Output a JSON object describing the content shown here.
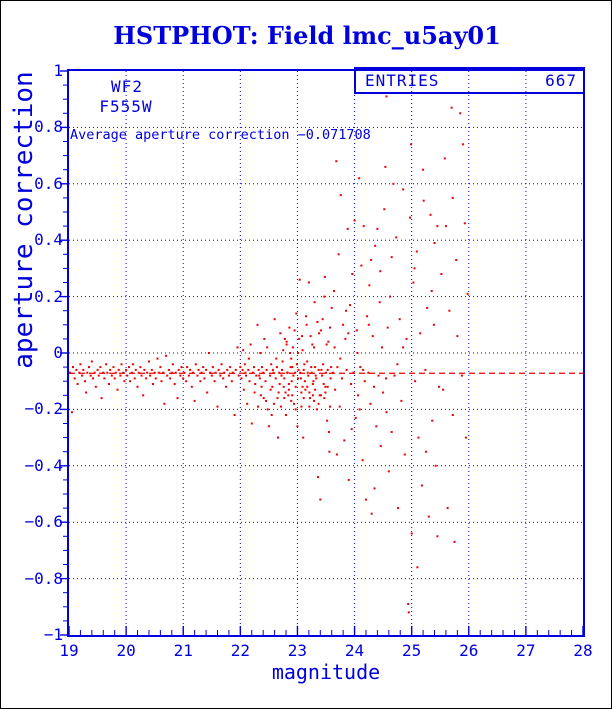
{
  "title": "HSTPHOT: Field lmc_u5ay01",
  "labels": {
    "detector": "WF2",
    "filter": "F555W",
    "average_line": "Average aperture correction −0.071708"
  },
  "stats_box": {
    "label": "ENTRIES",
    "value": "667"
  },
  "colors": {
    "blue": "#0000dd",
    "red": "#ee0000",
    "background": "#ffffff",
    "page_border": "#000000"
  },
  "chart_data": {
    "type": "scatter",
    "title": "HSTPHOT: Field lmc_u5ay01",
    "xlabel": "magnitude",
    "ylabel": "aperture correction",
    "xlim": [
      19,
      28
    ],
    "ylim": [
      -1,
      1
    ],
    "xticks": [
      19,
      20,
      21,
      22,
      23,
      24,
      25,
      26,
      27,
      28
    ],
    "yticks": [
      -1,
      -0.8,
      -0.6,
      -0.4,
      -0.2,
      0,
      0.2,
      0.4,
      0.6,
      0.8,
      1
    ],
    "x_minor_step": 0.2,
    "y_minor_step": 0.05,
    "grid": true,
    "legend": "none",
    "entries": 667,
    "average_aperture_correction": -0.071708,
    "reference_line_y": -0.071708,
    "points": [
      [
        19.02,
        -0.07
      ],
      [
        19.05,
        -0.21
      ],
      [
        19.07,
        -0.05
      ],
      [
        19.1,
        -0.09
      ],
      [
        19.13,
        -0.06
      ],
      [
        19.15,
        -0.11
      ],
      [
        19.18,
        -0.07
      ],
      [
        19.2,
        -0.04
      ],
      [
        19.23,
        -0.08
      ],
      [
        19.25,
        -0.06
      ],
      [
        19.28,
        -0.1
      ],
      [
        19.3,
        -0.14
      ],
      [
        19.32,
        -0.07
      ],
      [
        19.35,
        -0.05
      ],
      [
        19.38,
        -0.08
      ],
      [
        19.4,
        -0.03
      ],
      [
        19.42,
        -0.09
      ],
      [
        19.45,
        -0.07
      ],
      [
        19.47,
        -0.12
      ],
      [
        19.5,
        -0.06
      ],
      [
        19.52,
        -0.08
      ],
      [
        19.55,
        -0.05
      ],
      [
        19.57,
        -0.16
      ],
      [
        19.6,
        -0.07
      ],
      [
        19.62,
        -0.09
      ],
      [
        19.65,
        -0.04
      ],
      [
        19.67,
        -0.07
      ],
      [
        19.7,
        -0.11
      ],
      [
        19.72,
        -0.06
      ],
      [
        19.75,
        -0.08
      ],
      [
        19.78,
        -0.05
      ],
      [
        19.8,
        -0.09
      ],
      [
        19.82,
        -0.07
      ],
      [
        19.85,
        -0.13
      ],
      [
        19.87,
        -0.06
      ],
      [
        19.9,
        -0.08
      ],
      [
        19.92,
        -0.04
      ],
      [
        19.95,
        -0.07
      ],
      [
        19.97,
        -0.1
      ],
      [
        20.0,
        -0.06
      ],
      [
        20.02,
        -0.08
      ],
      [
        20.05,
        -0.05
      ],
      [
        20.07,
        -0.1
      ],
      [
        20.1,
        -0.07
      ],
      [
        20.12,
        -0.04
      ],
      [
        20.15,
        -0.09
      ],
      [
        20.17,
        -0.06
      ],
      [
        20.2,
        -0.12
      ],
      [
        20.22,
        -0.07
      ],
      [
        20.25,
        -0.05
      ],
      [
        20.27,
        -0.08
      ],
      [
        20.3,
        -0.15
      ],
      [
        20.32,
        -0.06
      ],
      [
        20.35,
        -0.09
      ],
      [
        20.37,
        -0.07
      ],
      [
        20.4,
        -0.03
      ],
      [
        20.42,
        -0.08
      ],
      [
        20.45,
        -0.06
      ],
      [
        20.47,
        -0.11
      ],
      [
        20.5,
        -0.07
      ],
      [
        20.52,
        -0.09
      ],
      [
        20.55,
        -0.02
      ],
      [
        20.57,
        -0.07
      ],
      [
        20.6,
        -0.05
      ],
      [
        20.62,
        -0.1
      ],
      [
        20.65,
        -0.07
      ],
      [
        20.67,
        -0.18
      ],
      [
        20.7,
        -0.01
      ],
      [
        20.72,
        -0.08
      ],
      [
        20.75,
        -0.06
      ],
      [
        20.77,
        -0.09
      ],
      [
        20.8,
        -0.07
      ],
      [
        20.82,
        -0.04
      ],
      [
        20.85,
        -0.11
      ],
      [
        20.87,
        -0.07
      ],
      [
        20.9,
        -0.16
      ],
      [
        20.92,
        -0.06
      ],
      [
        20.95,
        -0.08
      ],
      [
        20.97,
        -0.05
      ],
      [
        21.0,
        -0.09
      ],
      [
        21.02,
        -0.07
      ],
      [
        21.05,
        -0.1
      ],
      [
        21.07,
        -0.05
      ],
      [
        21.1,
        -0.08
      ],
      [
        21.12,
        -0.06
      ],
      [
        21.15,
        -0.12
      ],
      [
        21.17,
        -0.07
      ],
      [
        21.2,
        -0.17
      ],
      [
        21.22,
        -0.04
      ],
      [
        21.25,
        -0.08
      ],
      [
        21.27,
        -0.06
      ],
      [
        21.3,
        -0.1
      ],
      [
        21.32,
        -0.07
      ],
      [
        21.35,
        -0.05
      ],
      [
        21.37,
        -0.09
      ],
      [
        21.4,
        -0.06
      ],
      [
        21.42,
        -0.14
      ],
      [
        21.45,
        0.0
      ],
      [
        21.47,
        -0.07
      ],
      [
        21.5,
        -0.08
      ],
      [
        21.52,
        -0.05
      ],
      [
        21.55,
        -0.1
      ],
      [
        21.57,
        -0.07
      ],
      [
        21.6,
        -0.19
      ],
      [
        21.62,
        -0.06
      ],
      [
        21.65,
        -0.08
      ],
      [
        21.67,
        -0.04
      ],
      [
        21.7,
        -0.09
      ],
      [
        21.72,
        -0.07
      ],
      [
        21.75,
        -0.12
      ],
      [
        21.77,
        -0.06
      ],
      [
        21.8,
        -0.08
      ],
      [
        21.82,
        -0.05
      ],
      [
        21.85,
        -0.1
      ],
      [
        21.87,
        -0.07
      ],
      [
        21.9,
        -0.22
      ],
      [
        21.92,
        -0.06
      ],
      [
        21.95,
        0.02
      ],
      [
        21.97,
        -0.08
      ],
      [
        22.0,
        -0.05
      ],
      [
        22.02,
        -0.09
      ],
      [
        22.04,
        -0.06
      ],
      [
        22.06,
        -0.13
      ],
      [
        22.08,
        -0.04
      ],
      [
        22.1,
        -0.08
      ],
      [
        22.12,
        -0.18
      ],
      [
        22.14,
        -0.06
      ],
      [
        22.16,
        -0.1
      ],
      [
        22.18,
        0.03
      ],
      [
        22.2,
        -0.25
      ],
      [
        22.22,
        -0.07
      ],
      [
        22.24,
        -0.05
      ],
      [
        22.26,
        -0.11
      ],
      [
        22.28,
        -0.08
      ],
      [
        22.3,
        0.1
      ],
      [
        22.32,
        -0.06
      ],
      [
        22.34,
        -0.09
      ],
      [
        22.36,
        -0.15
      ],
      [
        22.38,
        -0.05
      ],
      [
        22.4,
        -0.07
      ],
      [
        22.42,
        0.05
      ],
      [
        22.44,
        -0.1
      ],
      [
        22.46,
        -0.06
      ],
      [
        22.48,
        -0.2
      ],
      [
        22.5,
        -0.26
      ],
      [
        22.52,
        -0.08
      ],
      [
        22.54,
        -0.04
      ],
      [
        22.56,
        -0.12
      ],
      [
        22.58,
        -0.07
      ],
      [
        22.6,
        0.12
      ],
      [
        22.62,
        -0.09
      ],
      [
        22.64,
        -0.05
      ],
      [
        22.66,
        -0.3
      ],
      [
        22.68,
        -0.07
      ],
      [
        22.7,
        0.07
      ],
      [
        22.05,
        0.01
      ],
      [
        22.15,
        -0.02
      ],
      [
        22.25,
        -0.14
      ],
      [
        22.35,
        0.0
      ],
      [
        22.45,
        -0.17
      ],
      [
        22.55,
        -0.22
      ],
      [
        22.65,
        -0.16
      ],
      [
        22.09,
        -0.07
      ],
      [
        22.33,
        -0.08
      ],
      [
        22.57,
        -0.06
      ],
      [
        22.69,
        -0.11
      ],
      [
        22.72,
        -0.08
      ],
      [
        22.74,
        -0.03
      ],
      [
        22.76,
        -0.12
      ],
      [
        22.78,
        0.05
      ],
      [
        22.8,
        -0.22
      ],
      [
        22.82,
        -0.07
      ],
      [
        22.84,
        -0.15
      ],
      [
        22.86,
        0.09
      ],
      [
        22.88,
        -0.05
      ],
      [
        22.9,
        -0.1
      ],
      [
        22.92,
        0.02
      ],
      [
        22.94,
        -0.18
      ],
      [
        22.96,
        -0.07
      ],
      [
        22.98,
        0.14
      ],
      [
        23.0,
        -0.26
      ],
      [
        23.02,
        -0.06
      ],
      [
        23.04,
        0.26
      ],
      [
        23.06,
        -0.09
      ],
      [
        23.08,
        0.06
      ],
      [
        23.1,
        -0.3
      ],
      [
        23.12,
        -0.04
      ],
      [
        23.14,
        -0.13
      ],
      [
        23.16,
        0.1
      ],
      [
        23.18,
        -0.07
      ],
      [
        23.2,
        0.25
      ],
      [
        23.22,
        -0.16
      ],
      [
        23.24,
        -0.05
      ],
      [
        23.26,
        0.03
      ],
      [
        23.28,
        -0.1
      ],
      [
        23.3,
        0.18
      ],
      [
        23.32,
        -0.08
      ],
      [
        23.34,
        -0.2
      ],
      [
        23.36,
        -0.44
      ],
      [
        23.38,
        0.07
      ],
      [
        23.4,
        -0.52
      ],
      [
        23.42,
        -0.06
      ],
      [
        23.44,
        0.12
      ],
      [
        23.46,
        -0.11
      ],
      [
        23.48,
        0.27
      ],
      [
        23.5,
        -0.07
      ],
      [
        23.52,
        -0.24
      ],
      [
        23.54,
        0.04
      ],
      [
        23.56,
        -0.35
      ],
      [
        23.58,
        -0.09
      ],
      [
        23.6,
        0.16
      ],
      [
        22.73,
        -0.06
      ],
      [
        22.75,
        0.01
      ],
      [
        22.77,
        -0.09
      ],
      [
        22.79,
        -0.14
      ],
      [
        22.81,
        0.04
      ],
      [
        22.83,
        -0.07
      ],
      [
        22.85,
        -0.11
      ],
      [
        22.87,
        0.0
      ],
      [
        22.89,
        -0.17
      ],
      [
        22.91,
        -0.05
      ],
      [
        22.93,
        -0.08
      ],
      [
        22.95,
        0.08
      ],
      [
        22.97,
        -0.12
      ],
      [
        22.99,
        -0.04
      ],
      [
        23.01,
        -0.09
      ],
      [
        23.03,
        0.05
      ],
      [
        23.05,
        -0.07
      ],
      [
        23.07,
        -0.19
      ],
      [
        23.09,
        0.01
      ],
      [
        23.11,
        -0.06
      ],
      [
        23.13,
        -0.1
      ],
      [
        23.15,
        0.13
      ],
      [
        23.17,
        -0.03
      ],
      [
        23.19,
        -0.08
      ],
      [
        23.21,
        -0.14
      ],
      [
        23.23,
        0.06
      ],
      [
        23.25,
        -0.07
      ],
      [
        23.27,
        -0.11
      ],
      [
        23.29,
        0.02
      ],
      [
        23.31,
        -0.05
      ],
      [
        23.33,
        -0.09
      ],
      [
        23.35,
        0.11
      ],
      [
        23.37,
        -0.06
      ],
      [
        23.39,
        -0.15
      ],
      [
        23.41,
        0.08
      ],
      [
        23.43,
        -0.08
      ],
      [
        23.45,
        -0.04
      ],
      [
        23.47,
        0.2
      ],
      [
        23.49,
        -0.12
      ],
      [
        23.51,
        0.03
      ],
      [
        23.53,
        -0.06
      ],
      [
        23.55,
        -0.28
      ],
      [
        23.57,
        0.09
      ],
      [
        23.59,
        -0.05
      ],
      [
        23.62,
        -0.07
      ],
      [
        23.64,
        0.22
      ],
      [
        23.66,
        -0.13
      ],
      [
        23.68,
        0.68
      ],
      [
        23.7,
        -0.05
      ],
      [
        23.72,
        0.35
      ],
      [
        23.74,
        -0.19
      ],
      [
        23.76,
        0.56
      ],
      [
        23.78,
        -0.09
      ],
      [
        23.8,
        0.1
      ],
      [
        23.82,
        -0.31
      ],
      [
        23.84,
        0.05
      ],
      [
        23.86,
        -0.06
      ],
      [
        23.88,
        0.44
      ],
      [
        23.9,
        -0.45
      ],
      [
        23.92,
        0.17
      ],
      [
        23.94,
        -0.11
      ],
      [
        23.96,
        0.28
      ],
      [
        23.98,
        -0.07
      ],
      [
        24.0,
        0.47
      ],
      [
        24.02,
        -0.23
      ],
      [
        24.04,
        0.08
      ],
      [
        24.06,
        -0.15
      ],
      [
        24.08,
        0.62
      ],
      [
        24.1,
        -0.05
      ],
      [
        24.12,
        0.31
      ],
      [
        24.14,
        -0.38
      ],
      [
        24.16,
        0.45
      ],
      [
        24.18,
        -0.1
      ],
      [
        24.2,
        -0.52
      ],
      [
        24.22,
        0.13
      ],
      [
        24.24,
        -0.07
      ],
      [
        24.26,
        0.24
      ],
      [
        24.28,
        -0.18
      ],
      [
        24.3,
        -0.57
      ],
      [
        24.32,
        0.06
      ],
      [
        24.34,
        -0.12
      ],
      [
        24.36,
        0.38
      ],
      [
        24.38,
        -0.26
      ],
      [
        24.4,
        0.44
      ],
      [
        24.42,
        -0.08
      ],
      [
        24.44,
        0.18
      ],
      [
        24.46,
        -0.33
      ],
      [
        24.48,
        0.02
      ],
      [
        24.5,
        -0.14
      ],
      [
        24.52,
        0.51
      ],
      [
        24.54,
        0.66
      ],
      [
        24.56,
        -0.21
      ],
      [
        24.58,
        0.09
      ],
      [
        24.6,
        -0.42
      ],
      [
        23.65,
        0.02
      ],
      [
        23.75,
        -0.02
      ],
      [
        23.85,
        0.15
      ],
      [
        23.95,
        -0.27
      ],
      [
        24.05,
        0.0
      ],
      [
        24.15,
        -0.06
      ],
      [
        24.25,
        0.1
      ],
      [
        24.35,
        -0.48
      ],
      [
        24.45,
        0.29
      ],
      [
        24.55,
        -0.09
      ],
      [
        23.69,
        -0.36
      ],
      [
        23.89,
        0.07
      ],
      [
        24.09,
        -0.2
      ],
      [
        24.29,
        0.33
      ],
      [
        24.62,
        0.2
      ],
      [
        24.65,
        -0.28
      ],
      [
        24.68,
        0.6
      ],
      [
        24.7,
        -0.08
      ],
      [
        24.73,
        0.41
      ],
      [
        24.76,
        -0.55
      ],
      [
        24.79,
        0.12
      ],
      [
        24.82,
        -0.17
      ],
      [
        24.85,
        0.58
      ],
      [
        24.88,
        -0.36
      ],
      [
        24.91,
        0.05
      ],
      [
        24.94,
        -0.89
      ],
      [
        24.97,
        0.48
      ],
      [
        25.0,
        -0.64
      ],
      [
        25.03,
        0.25
      ],
      [
        25.06,
        -0.1
      ],
      [
        25.09,
        0.36
      ],
      [
        25.12,
        -0.3
      ],
      [
        25.15,
        0.07
      ],
      [
        25.18,
        -0.47
      ],
      [
        25.21,
        0.54
      ],
      [
        25.24,
        -0.06
      ],
      [
        25.27,
        0.16
      ],
      [
        25.3,
        -0.58
      ],
      [
        25.33,
        0.49
      ],
      [
        25.36,
        -0.24
      ],
      [
        25.39,
        0.1
      ],
      [
        25.42,
        -0.4
      ],
      [
        25.45,
        0.45
      ],
      [
        25.48,
        -0.12
      ],
      [
        24.95,
        -0.92
      ],
      [
        25.05,
        0.3
      ],
      [
        24.75,
        -0.04
      ],
      [
        24.85,
        0.02
      ],
      [
        25.25,
        -0.35
      ],
      [
        25.35,
        0.22
      ],
      [
        24.65,
        0.34
      ],
      [
        25.45,
        -0.65
      ],
      [
        24.99,
        0.74
      ],
      [
        25.1,
        -0.76
      ],
      [
        25.2,
        0.65
      ],
      [
        25.4,
        0.39
      ],
      [
        24.56,
        0.91
      ],
      [
        25.52,
        0.28
      ],
      [
        25.55,
        -0.13
      ],
      [
        25.58,
        0.69
      ],
      [
        25.6,
        0.45
      ],
      [
        25.63,
        -0.55
      ],
      [
        25.66,
        0.15
      ],
      [
        25.7,
        0.87
      ],
      [
        25.72,
        -0.22
      ],
      [
        25.75,
        -0.67
      ],
      [
        25.78,
        0.33
      ],
      [
        25.8,
        0.06
      ],
      [
        25.85,
        0.85
      ],
      [
        25.88,
        -0.08
      ],
      [
        25.9,
        0.74
      ],
      [
        25.93,
        0.46
      ],
      [
        25.95,
        -0.3
      ],
      [
        25.72,
        0.55
      ],
      [
        25.98,
        0.21
      ],
      [
        22.31,
        -0.19
      ],
      [
        22.37,
        -0.12
      ],
      [
        22.41,
        -0.16
      ],
      [
        22.47,
        0.02
      ],
      [
        22.53,
        -0.13
      ],
      [
        22.59,
        -0.18
      ],
      [
        22.63,
        -0.02
      ],
      [
        22.67,
        -0.14
      ],
      [
        22.71,
        -0.19
      ],
      [
        22.77,
        -0.16
      ],
      [
        22.81,
        0.03
      ],
      [
        22.85,
        -0.13
      ],
      [
        22.91,
        -0.15
      ],
      [
        22.97,
        -0.2
      ],
      [
        23.01,
        0.0
      ],
      [
        23.07,
        -0.14
      ],
      [
        23.11,
        -0.16
      ],
      [
        23.17,
        -0.12
      ],
      [
        23.21,
        -0.19
      ],
      [
        23.27,
        -0.15
      ],
      [
        23.31,
        -0.13
      ],
      [
        23.37,
        -0.18
      ],
      [
        23.41,
        -0.15
      ],
      [
        23.47,
        -0.16
      ],
      [
        23.53,
        -0.12
      ],
      [
        23.57,
        -0.19
      ],
      [
        22.89,
        -0.02
      ],
      [
        23.09,
        -0.12
      ],
      [
        23.29,
        -0.17
      ],
      [
        23.49,
        -0.14
      ]
    ]
  }
}
